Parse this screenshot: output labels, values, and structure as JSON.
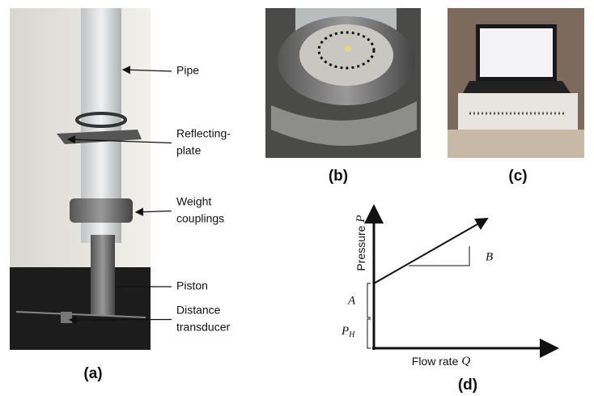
{
  "panels": {
    "a": {
      "label": "(a)",
      "annotations": [
        [
          "Pipe"
        ],
        [
          "Reflecting-",
          "plate"
        ],
        [
          "Weight",
          "couplings"
        ],
        [
          "Piston"
        ],
        [
          "Distance",
          "transducer"
        ]
      ]
    },
    "b": {
      "label": "(b)"
    },
    "c": {
      "label": "(c)"
    },
    "d": {
      "label": "(d)",
      "y_label": {
        "text": "Pressure",
        "symbol": "P"
      },
      "x_label": {
        "text": "Flow rate",
        "symbol": "Q"
      },
      "slope_label": "B",
      "intercept_label": "A",
      "offset_label": {
        "symbol": "P",
        "subscript": "H"
      }
    }
  }
}
